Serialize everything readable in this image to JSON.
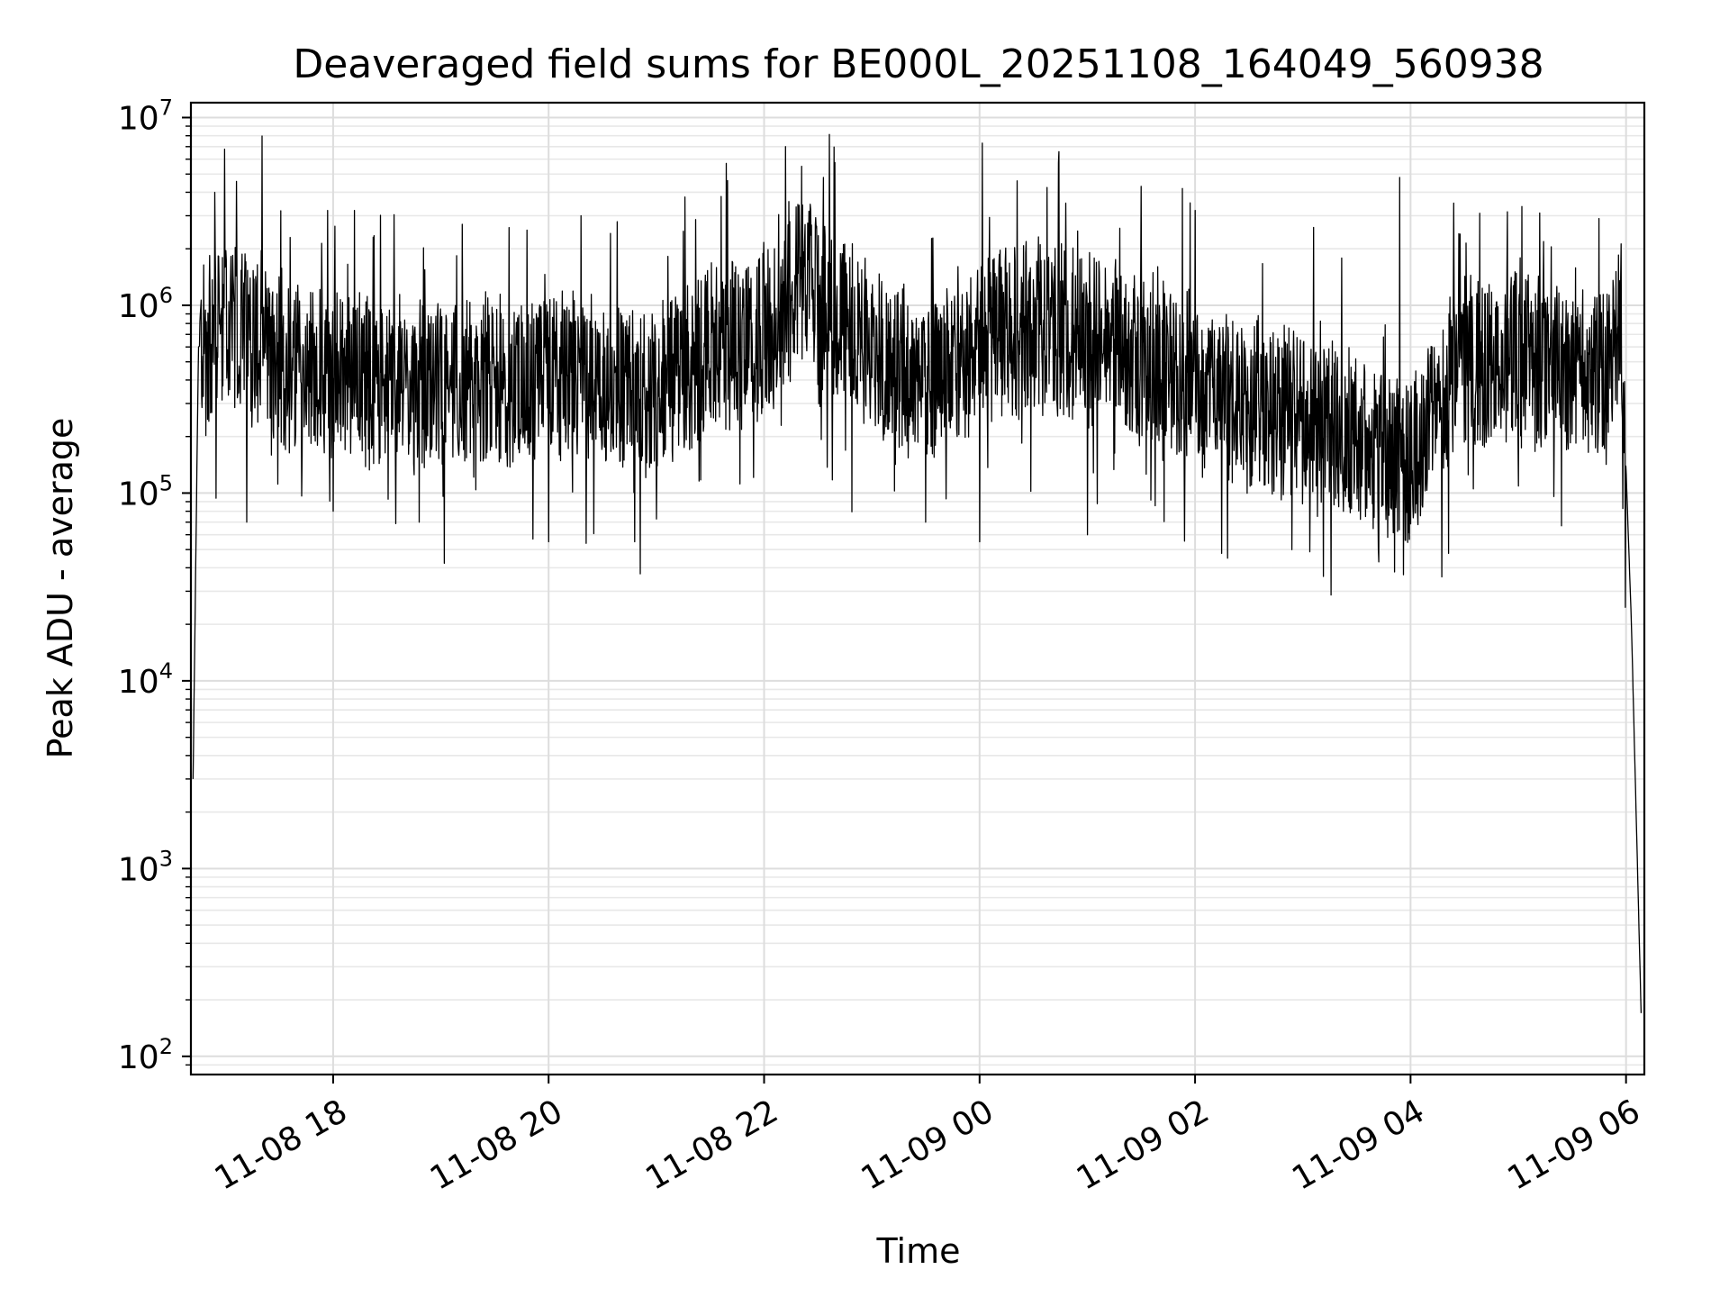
{
  "chart_data": {
    "type": "line",
    "title": "Deaveraged field sums for BE000L_20251108_164049_560938",
    "xlabel": "Time",
    "ylabel": "Peak ADU - average",
    "yscale": "log",
    "ylim": [
      80,
      12000000
    ],
    "xlim_hours": [
      16.68,
      30.17
    ],
    "grid": true,
    "line_color": "#000000",
    "x_ticks": [
      {
        "label": "11-08 18",
        "hours": 18
      },
      {
        "label": "11-08 20",
        "hours": 20
      },
      {
        "label": "11-08 22",
        "hours": 22
      },
      {
        "label": "11-09 00",
        "hours": 24
      },
      {
        "label": "11-09 02",
        "hours": 26
      },
      {
        "label": "11-09 04",
        "hours": 28
      },
      {
        "label": "11-09 06",
        "hours": 30
      }
    ],
    "y_ticks": [
      {
        "base": "10",
        "exp": "2",
        "value": 100
      },
      {
        "base": "10",
        "exp": "3",
        "value": 1000
      },
      {
        "base": "10",
        "exp": "4",
        "value": 10000
      },
      {
        "base": "10",
        "exp": "5",
        "value": 100000
      },
      {
        "base": "10",
        "exp": "6",
        "value": 1000000
      },
      {
        "base": "10",
        "exp": "7",
        "value": 10000000
      }
    ],
    "series": [
      {
        "name": "Deaveraged field sum",
        "baseline": {
          "hours": [
            16.7,
            16.75,
            17.0,
            17.3,
            17.5,
            18.0,
            18.5,
            19.0,
            19.5,
            20.0,
            20.5,
            21.0,
            21.5,
            22.0,
            22.3,
            22.6,
            23.0,
            23.5,
            24.0,
            24.5,
            25.0,
            25.5,
            26.0,
            26.5,
            27.0,
            27.5,
            28.0,
            28.5,
            29.0,
            29.5,
            29.85,
            29.95,
            30.05,
            30.15
          ],
          "values": [
            3000,
            600000,
            800000,
            700000,
            450000,
            420000,
            380000,
            360000,
            370000,
            420000,
            380000,
            340000,
            550000,
            700000,
            1300000,
            1000000,
            600000,
            380000,
            650000,
            800000,
            650000,
            520000,
            380000,
            320000,
            260000,
            200000,
            160000,
            420000,
            550000,
            400000,
            450000,
            900000,
            20000,
            100
          ]
        },
        "spikes_high": [
          {
            "hours": 16.9,
            "value": 4000000
          },
          {
            "hours": 17.2,
            "value": 3000000
          },
          {
            "hours": 17.6,
            "value": 2300000
          },
          {
            "hours": 17.95,
            "value": 3200000
          },
          {
            "hours": 18.2,
            "value": 3200000
          },
          {
            "hours": 19.2,
            "value": 2700000
          },
          {
            "hours": 20.3,
            "value": 3000000
          },
          {
            "hours": 21.6,
            "value": 3800000
          },
          {
            "hours": 22.2,
            "value": 7000000
          },
          {
            "hours": 22.35,
            "value": 5500000
          },
          {
            "hours": 22.55,
            "value": 4800000
          },
          {
            "hours": 24.35,
            "value": 4600000
          },
          {
            "hours": 24.8,
            "value": 3500000
          },
          {
            "hours": 25.5,
            "value": 4300000
          },
          {
            "hours": 26.0,
            "value": 3200000
          },
          {
            "hours": 27.1,
            "value": 2600000
          },
          {
            "hours": 27.9,
            "value": 4800000
          },
          {
            "hours": 28.4,
            "value": 3500000
          },
          {
            "hours": 29.2,
            "value": 3100000
          },
          {
            "hours": 29.75,
            "value": 2900000
          }
        ],
        "spikes_low": [
          {
            "hours": 17.2,
            "value": 70000
          },
          {
            "hours": 18.0,
            "value": 80000
          },
          {
            "hours": 18.8,
            "value": 70000
          },
          {
            "hours": 20.0,
            "value": 55000
          },
          {
            "hours": 20.8,
            "value": 55000
          },
          {
            "hours": 23.5,
            "value": 70000
          },
          {
            "hours": 24.0,
            "value": 55000
          },
          {
            "hours": 25.0,
            "value": 60000
          },
          {
            "hours": 26.3,
            "value": 45000
          },
          {
            "hours": 26.9,
            "value": 50000
          },
          {
            "hours": 27.7,
            "value": 50000
          },
          {
            "hours": 27.85,
            "value": 38000
          }
        ]
      }
    ]
  }
}
